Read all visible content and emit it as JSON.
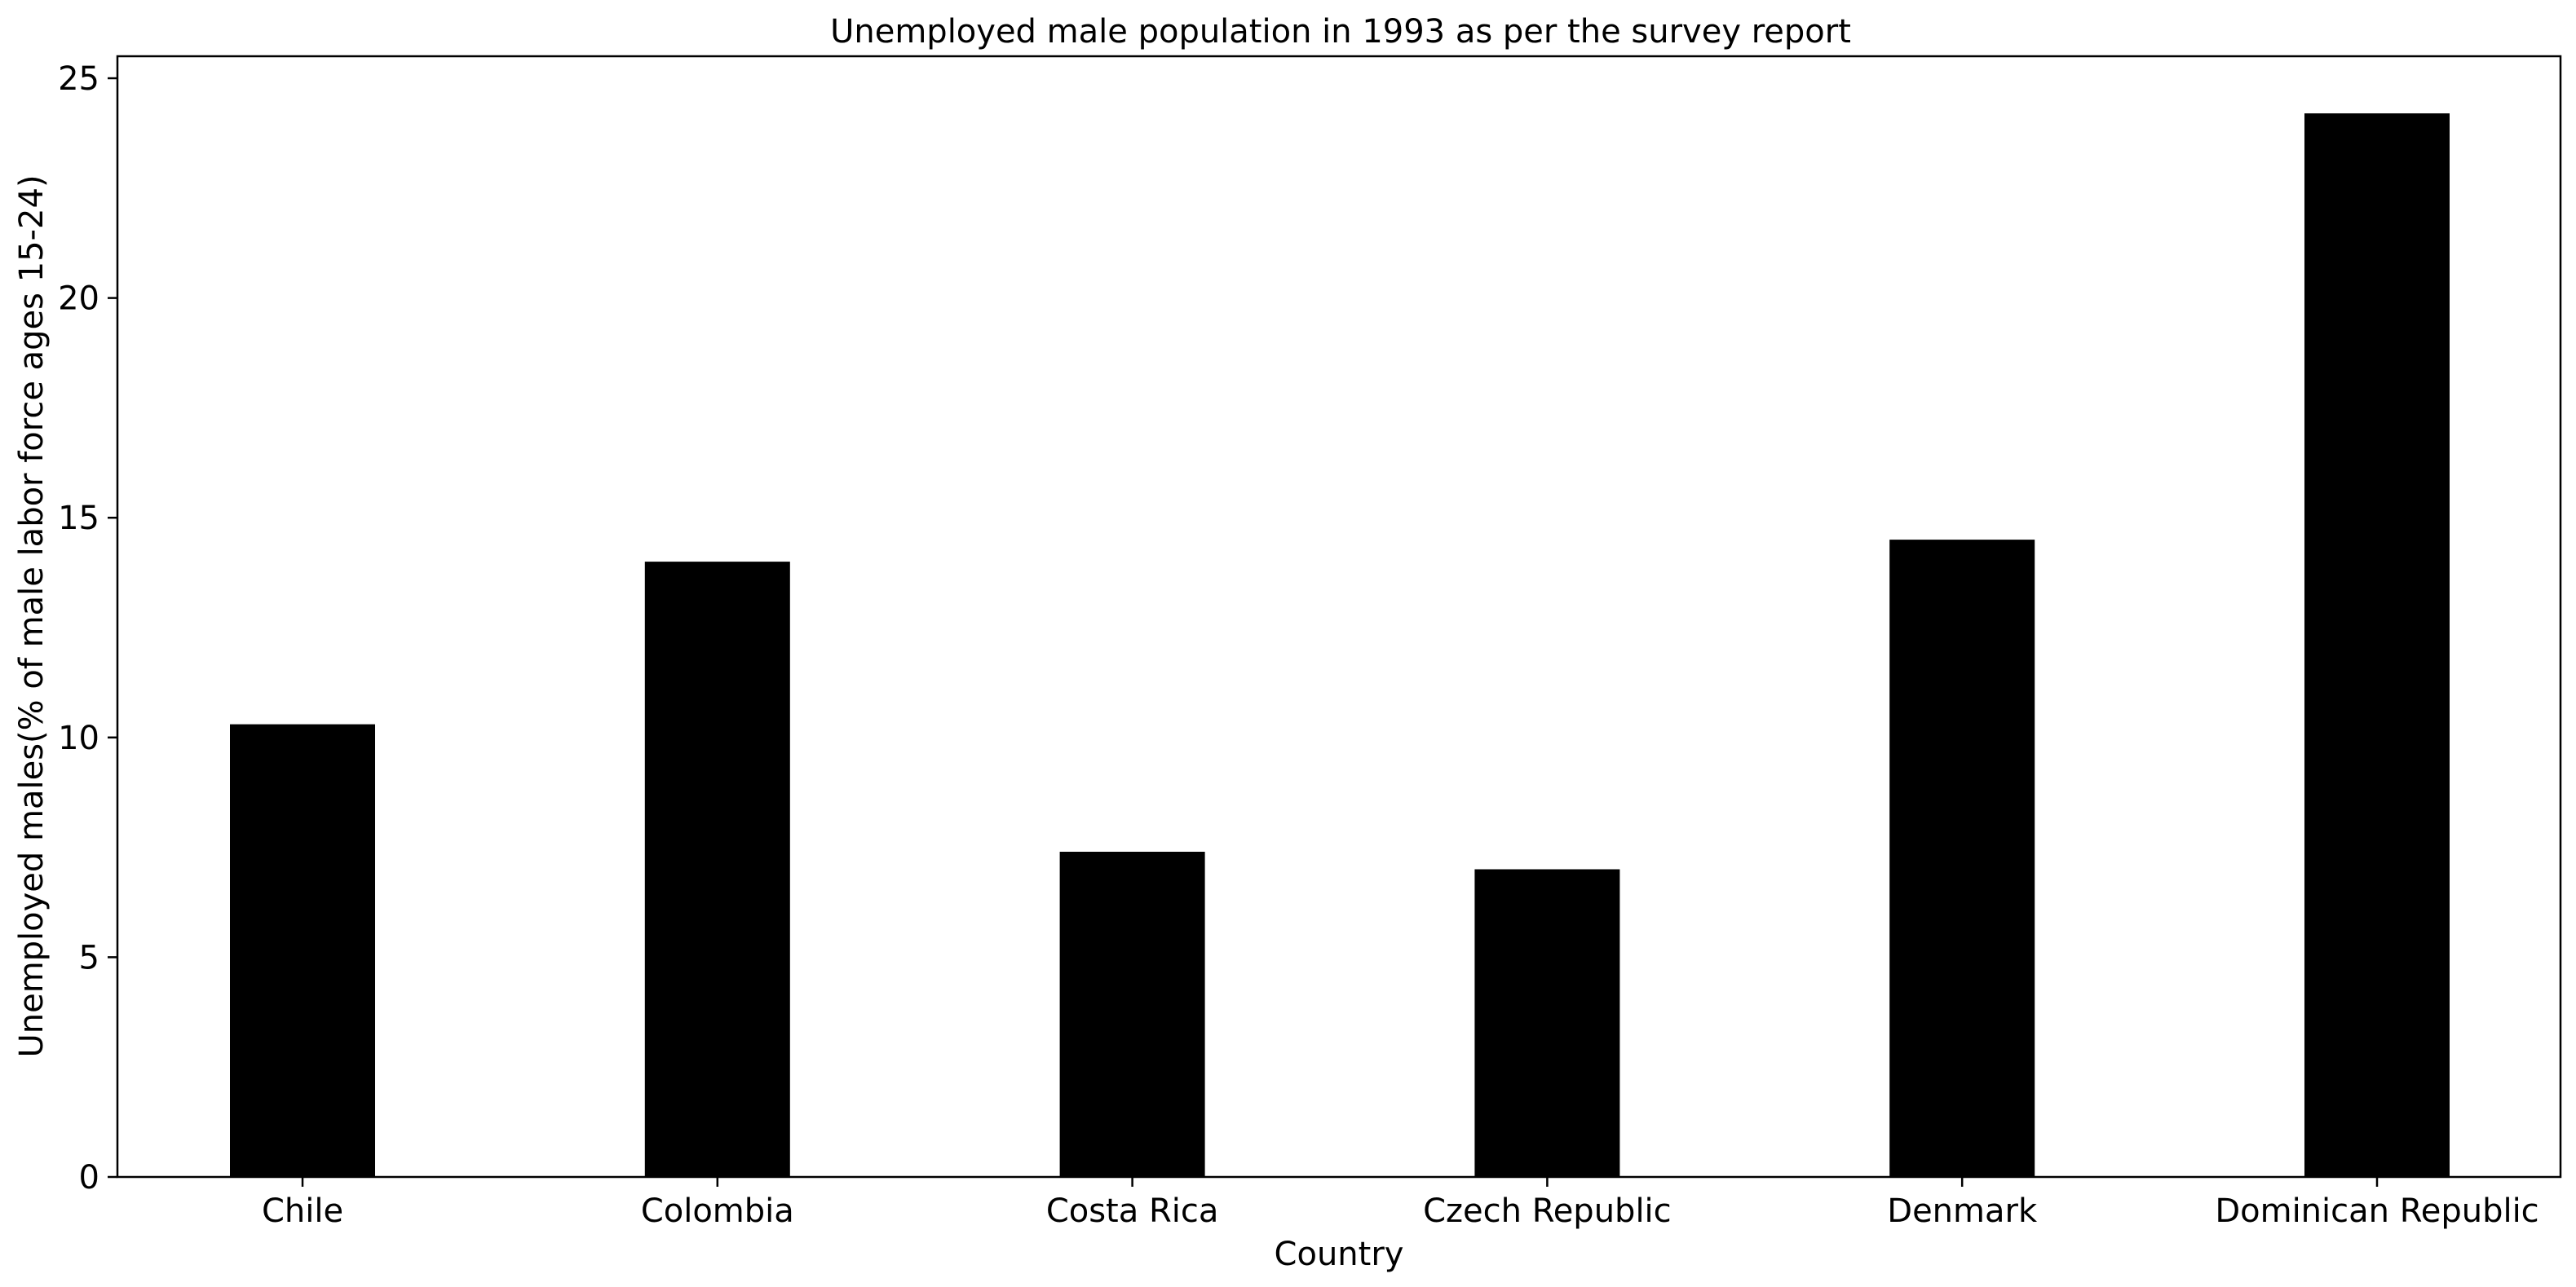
{
  "chart_data": {
    "type": "bar",
    "title": "Unemployed male population in 1993 as per the survey report",
    "xlabel": "Country",
    "ylabel": "Unemployed males(% of male labor force ages 15-24)",
    "categories": [
      "Chile",
      "Colombia",
      "Costa Rica",
      "Czech Republic",
      "Denmark",
      "Dominican Republic"
    ],
    "values": [
      10.3,
      14.0,
      7.4,
      7.0,
      14.5,
      24.2
    ],
    "ylim": [
      0,
      25.5
    ],
    "yticks": [
      0,
      5,
      10,
      15,
      20,
      25
    ],
    "bar_color": "#000000",
    "grid": false,
    "legend": "none"
  }
}
